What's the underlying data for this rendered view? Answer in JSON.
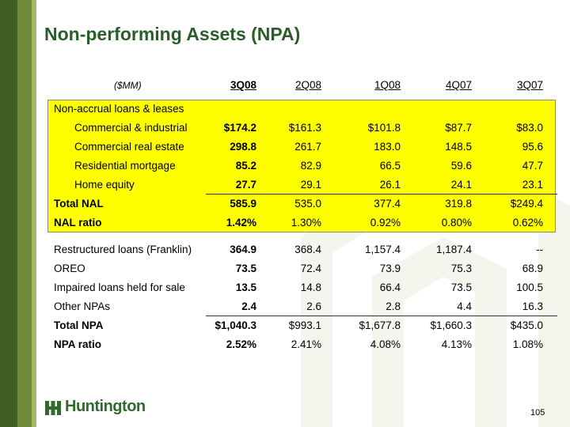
{
  "title": "Non-performing Assets (NPA)",
  "units": "($MM)",
  "columns": [
    "3Q08",
    "2Q08",
    "1Q08",
    "4Q07",
    "3Q07"
  ],
  "section_label": "Non-accrual loans & leases",
  "nal_rows": [
    {
      "label": "Commercial & industrial",
      "values": [
        "$174.2",
        "$161.3",
        "$101.8",
        "$87.7",
        "$83.0"
      ]
    },
    {
      "label": "Commercial real estate",
      "values": [
        "298.8",
        "261.7",
        "183.0",
        "148.5",
        "95.6"
      ]
    },
    {
      "label": "Residential mortgage",
      "values": [
        "85.2",
        "82.9",
        "66.5",
        "59.6",
        "47.7"
      ]
    },
    {
      "label": "Home equity",
      "values": [
        "27.7",
        "29.1",
        "26.1",
        "24.1",
        "23.1"
      ]
    }
  ],
  "total_nal": {
    "label": "Total NAL",
    "values": [
      "585.9",
      "535.0",
      "377.4",
      "319.8",
      "$249.4"
    ]
  },
  "nal_ratio": {
    "label": "NAL ratio",
    "values": [
      "1.42%",
      "1.30%",
      "0.92%",
      "0.80%",
      "0.62%"
    ]
  },
  "npa_rows": [
    {
      "label": "Restructured loans (Franklin)",
      "values": [
        "364.9",
        "368.4",
        "1,157.4",
        "1,187.4",
        "--"
      ]
    },
    {
      "label": "OREO",
      "values": [
        "73.5",
        "72.4",
        "73.9",
        "75.3",
        "68.9"
      ]
    },
    {
      "label": "Impaired loans held for sale",
      "values": [
        "13.5",
        "14.8",
        "66.4",
        "73.5",
        "100.5"
      ]
    },
    {
      "label": "Other NPAs",
      "values": [
        "2.4",
        "2.6",
        "2.8",
        "4.4",
        "16.3"
      ]
    }
  ],
  "total_npa": {
    "label": "Total NPA",
    "values": [
      "$1,040.3",
      "$993.1",
      "$1,677.8",
      "$1,660.3",
      "$435.0"
    ]
  },
  "npa_ratio": {
    "label": "NPA ratio",
    "values": [
      "2.52%",
      "2.41%",
      "4.08%",
      "4.13%",
      "1.08%"
    ]
  },
  "logo_text": "Huntington",
  "page_number": "105",
  "colors": {
    "title": "#2a5d2a",
    "highlight": "#ffff00",
    "band_dark": "#3f5f24"
  }
}
